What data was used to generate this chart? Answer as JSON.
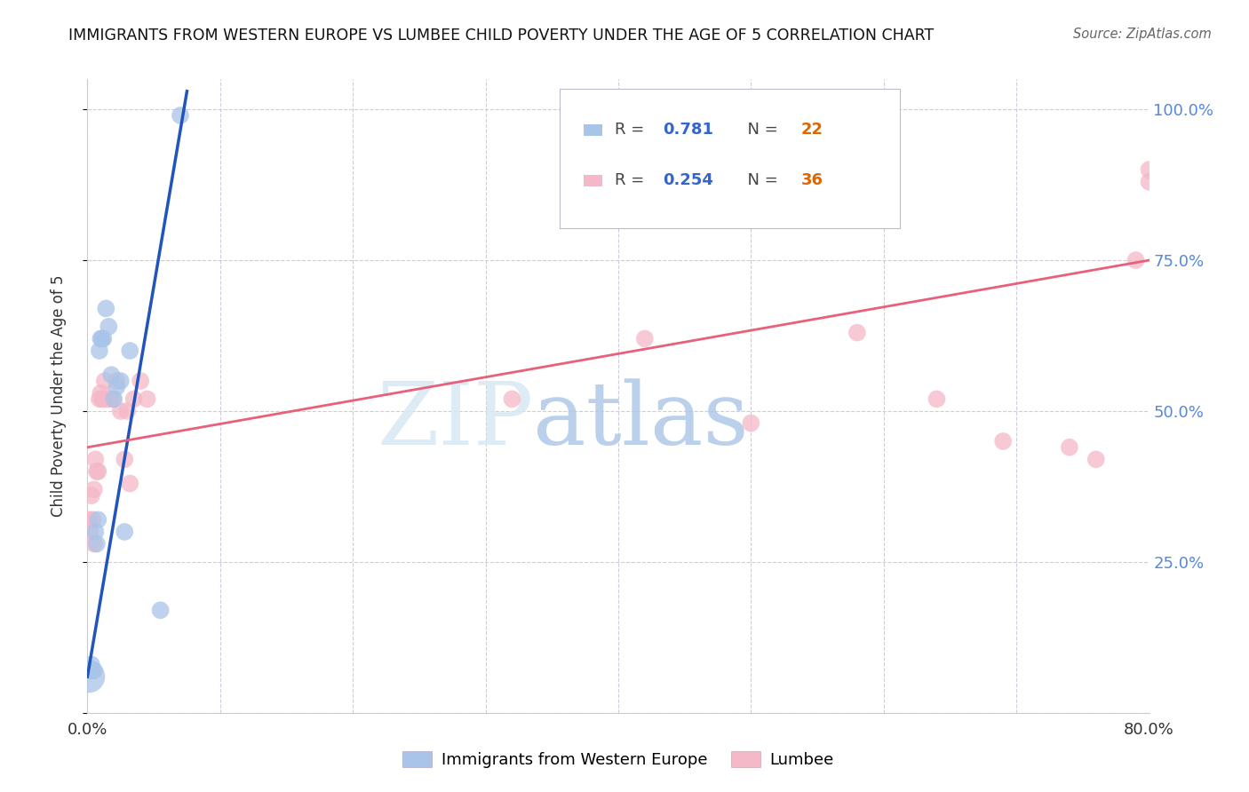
{
  "title": "IMMIGRANTS FROM WESTERN EUROPE VS LUMBEE CHILD POVERTY UNDER THE AGE OF 5 CORRELATION CHART",
  "source": "Source: ZipAtlas.com",
  "xlabel": "Immigrants from Western Europe",
  "ylabel": "Child Poverty Under the Age of 5",
  "xlim": [
    0.0,
    0.8
  ],
  "ylim": [
    0.0,
    1.05
  ],
  "blue_color": "#a8c4e8",
  "pink_color": "#f4b8c8",
  "blue_line_color": "#2255bb",
  "pink_line_color": "#e8607a",
  "right_axis_color": "#5588dd",
  "watermark_color": "#dce8f5",
  "background_color": "#ffffff",
  "blue_scatter_x": [
    0.001,
    0.002,
    0.003,
    0.004,
    0.005,
    0.006,
    0.007,
    0.008,
    0.009,
    0.01,
    0.011,
    0.012,
    0.014,
    0.016,
    0.018,
    0.02,
    0.022,
    0.025,
    0.028,
    0.032,
    0.055,
    0.07
  ],
  "blue_scatter_y": [
    0.06,
    0.07,
    0.08,
    0.07,
    0.07,
    0.3,
    0.28,
    0.32,
    0.6,
    0.62,
    0.62,
    0.62,
    0.67,
    0.64,
    0.56,
    0.52,
    0.54,
    0.55,
    0.3,
    0.6,
    0.17,
    0.99
  ],
  "blue_scatter_sizes": [
    700,
    200,
    200,
    200,
    200,
    200,
    200,
    200,
    200,
    200,
    200,
    200,
    200,
    200,
    200,
    200,
    200,
    200,
    200,
    200,
    200,
    200
  ],
  "pink_scatter_x": [
    0.001,
    0.002,
    0.003,
    0.004,
    0.005,
    0.005,
    0.006,
    0.007,
    0.008,
    0.009,
    0.01,
    0.011,
    0.012,
    0.013,
    0.015,
    0.017,
    0.019,
    0.022,
    0.025,
    0.028,
    0.03,
    0.032,
    0.035,
    0.04,
    0.045,
    0.32,
    0.42,
    0.5,
    0.58,
    0.64,
    0.69,
    0.74,
    0.76,
    0.79,
    0.8,
    0.8
  ],
  "pink_scatter_y": [
    0.32,
    0.3,
    0.36,
    0.32,
    0.37,
    0.28,
    0.42,
    0.4,
    0.4,
    0.52,
    0.53,
    0.52,
    0.52,
    0.55,
    0.52,
    0.52,
    0.52,
    0.55,
    0.5,
    0.42,
    0.5,
    0.38,
    0.52,
    0.55,
    0.52,
    0.52,
    0.62,
    0.48,
    0.63,
    0.52,
    0.45,
    0.44,
    0.42,
    0.75,
    0.88,
    0.9
  ],
  "pink_scatter_sizes": [
    200,
    200,
    200,
    200,
    200,
    200,
    200,
    200,
    200,
    200,
    200,
    200,
    200,
    200,
    200,
    200,
    200,
    200,
    200,
    200,
    200,
    200,
    200,
    200,
    200,
    200,
    200,
    200,
    200,
    200,
    200,
    200,
    200,
    200,
    200,
    200
  ],
  "blue_line_x0": 0.0,
  "blue_line_y0": 0.06,
  "blue_line_x1": 0.075,
  "blue_line_y1": 1.03,
  "pink_line_x0": 0.0,
  "pink_line_y0": 0.44,
  "pink_line_x1": 0.8,
  "pink_line_y1": 0.75
}
